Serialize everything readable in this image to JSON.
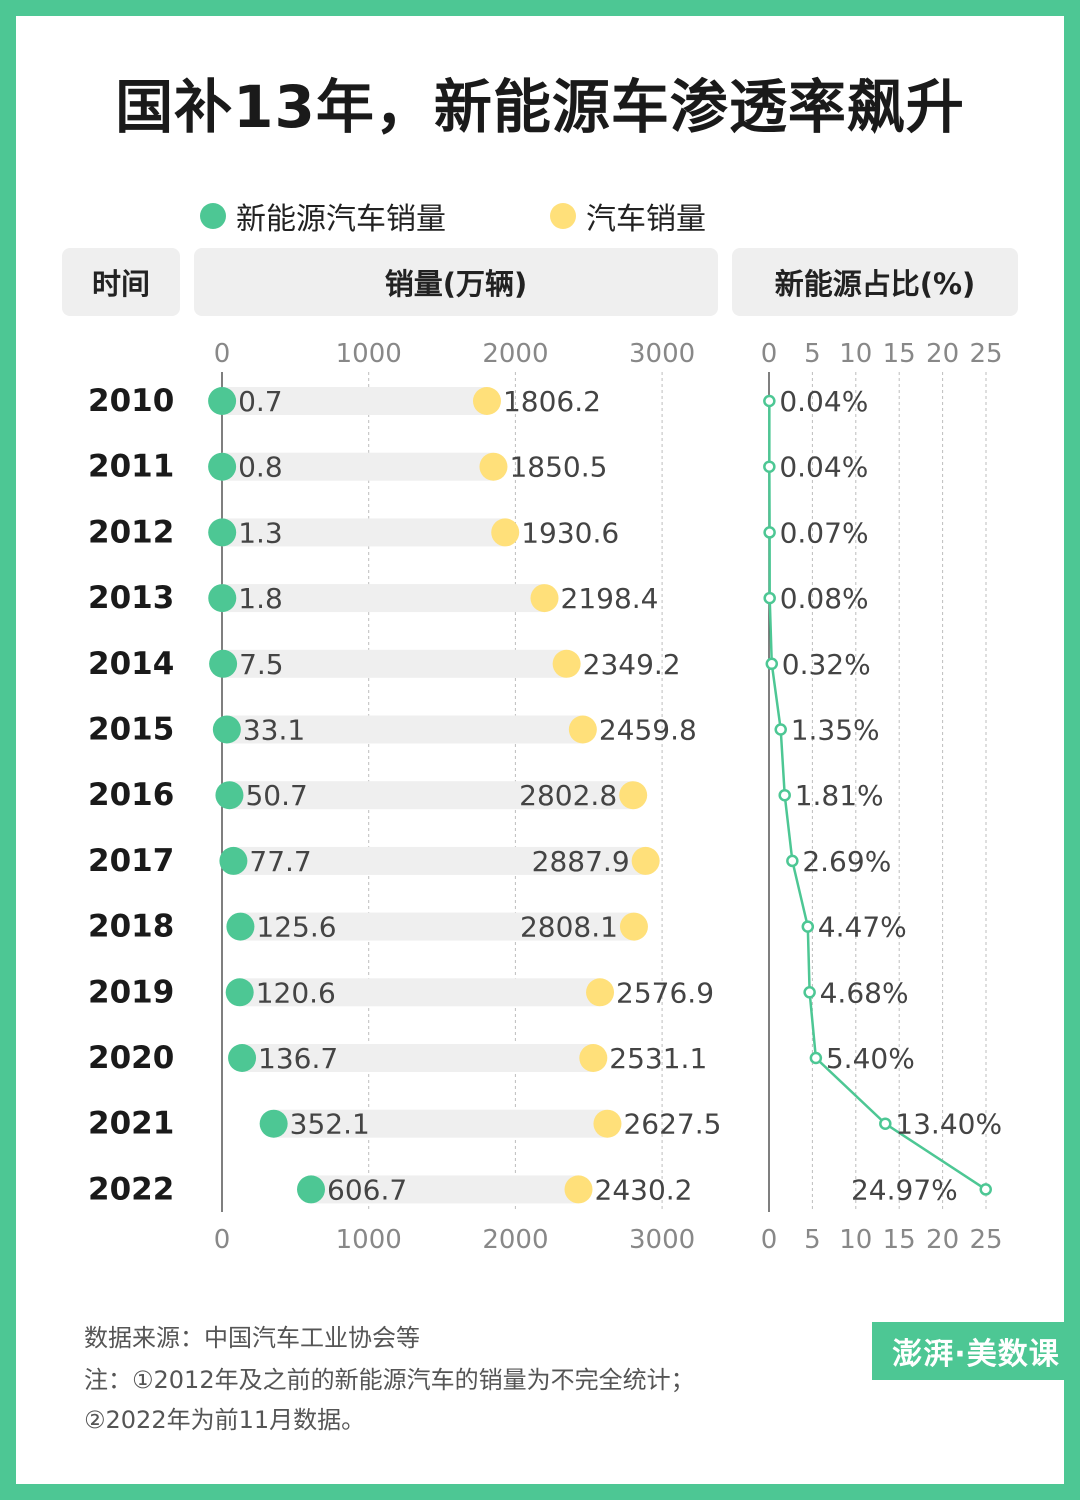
{
  "title": "国补13年，新能源车渗透率飙升",
  "legend": [
    {
      "label": "新能源汽车销量",
      "color": "#4dc794"
    },
    {
      "label": "汽车销量",
      "color": "#ffe07a"
    }
  ],
  "headers": {
    "time": "时间",
    "sales": "销量(万辆)",
    "share": "新能源占比(%)"
  },
  "chart_data": {
    "type": "dot",
    "categories": [
      "2010",
      "2011",
      "2012",
      "2013",
      "2014",
      "2015",
      "2016",
      "2017",
      "2018",
      "2019",
      "2020",
      "2021",
      "2022"
    ],
    "series": [
      {
        "name": "新能源汽车销量",
        "color": "#4dc794",
        "values": [
          0.7,
          0.8,
          1.3,
          1.8,
          7.5,
          33.1,
          50.7,
          77.7,
          125.6,
          120.6,
          136.7,
          352.1,
          606.7
        ]
      },
      {
        "name": "汽车销量",
        "color": "#ffe07a",
        "values": [
          1806.2,
          1850.5,
          1930.6,
          2198.4,
          2349.2,
          2459.8,
          2802.8,
          2887.9,
          2808.1,
          2576.9,
          2531.1,
          2627.5,
          2430.2
        ]
      }
    ],
    "sales_axis": {
      "range": [
        0,
        3000
      ],
      "ticks": [
        "0",
        "1000",
        "2000",
        "3000"
      ]
    },
    "share": {
      "type": "line",
      "values": [
        0.04,
        0.04,
        0.07,
        0.08,
        0.32,
        1.35,
        1.81,
        2.69,
        4.47,
        4.68,
        5.4,
        13.4,
        24.97
      ],
      "labels": [
        "0.04%",
        "0.04%",
        "0.07%",
        "0.08%",
        "0.32%",
        "1.35%",
        "1.81%",
        "2.69%",
        "4.47%",
        "4.68%",
        "5.40%",
        "13.40%",
        "24.97%"
      ],
      "range": [
        0,
        25
      ],
      "ticks": [
        "0",
        "5",
        "10",
        "15",
        "20",
        "25"
      ],
      "color": "#4dc794"
    }
  },
  "footer": {
    "source": "数据来源：中国汽车工业协会等",
    "note1": "注：①2012年及之前的新能源汽车的销量为不完全统计；",
    "note2": "②2022年为前11月数据。"
  },
  "logo": "澎湃·美数课"
}
